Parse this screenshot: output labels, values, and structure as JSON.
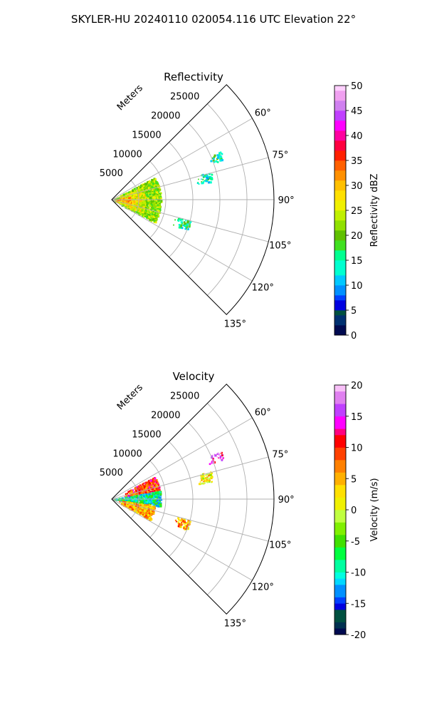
{
  "figure": {
    "title": "SKYLER-HU  20240110  020054.116 UTC Elevation 22°"
  },
  "chart_data": [
    {
      "type": "heatmap",
      "projection": "polar-sector",
      "title": "Reflectivity",
      "radial_label": "Meters",
      "radial_ticks": [
        5000,
        10000,
        15000,
        20000,
        25000
      ],
      "radial_tick_labels": [
        "5000",
        "10000",
        "15000",
        "20000",
        "25000"
      ],
      "azimuth_ticks": [
        60,
        75,
        90,
        105,
        120,
        135
      ],
      "azimuth_tick_labels": [
        "60°",
        "75°",
        "90°",
        "105°",
        "120°",
        "135°"
      ],
      "azimuth_range": [
        45,
        135
      ],
      "radial_range": [
        0,
        30000
      ],
      "grid": true,
      "colorbar": {
        "label": "Reflectivity dBZ",
        "range": [
          0,
          50
        ],
        "ticks": [
          0,
          5,
          10,
          15,
          20,
          25,
          30,
          35,
          40,
          45,
          50
        ],
        "tick_labels": [
          "0",
          "5",
          "10",
          "15",
          "20",
          "25",
          "30",
          "35",
          "40",
          "45",
          "50"
        ]
      },
      "echo_regions": [
        {
          "az": [
            62,
            118
          ],
          "range": [
            0,
            9000
          ],
          "value": 22
        },
        {
          "az": [
            68,
            112
          ],
          "range": [
            1500,
            6000
          ],
          "value": 26
        },
        {
          "az": [
            80,
            100
          ],
          "range": [
            500,
            3500
          ],
          "value": 30
        },
        {
          "az": [
            66,
            70
          ],
          "range": [
            19000,
            22000
          ],
          "value": 15
        },
        {
          "az": [
            74,
            80
          ],
          "range": [
            16000,
            19000
          ],
          "value": 14
        },
        {
          "az": [
            105,
            112
          ],
          "range": [
            12000,
            15000
          ],
          "value": 15
        }
      ]
    },
    {
      "type": "heatmap",
      "projection": "polar-sector",
      "title": "Velocity",
      "radial_label": "Meters",
      "radial_ticks": [
        5000,
        10000,
        15000,
        20000,
        25000
      ],
      "radial_tick_labels": [
        "5000",
        "10000",
        "15000",
        "20000",
        "25000"
      ],
      "azimuth_ticks": [
        60,
        75,
        90,
        105,
        120,
        135
      ],
      "azimuth_tick_labels": [
        "60°",
        "75°",
        "90°",
        "105°",
        "120°",
        "135°"
      ],
      "azimuth_range": [
        45,
        135
      ],
      "radial_range": [
        0,
        30000
      ],
      "grid": true,
      "colorbar": {
        "label": "Velocity (m/s)",
        "range": [
          -20,
          20
        ],
        "ticks": [
          -20,
          -15,
          -10,
          -5,
          0,
          5,
          10,
          15,
          20
        ],
        "tick_labels": [
          "-20",
          "-15",
          "-10",
          "-5",
          "0",
          "5",
          "10",
          "15",
          "20"
        ]
      },
      "echo_regions": [
        {
          "az": [
            62,
            80
          ],
          "range": [
            2000,
            9000
          ],
          "value": 9
        },
        {
          "az": [
            80,
            98
          ],
          "range": [
            0,
            9000
          ],
          "value": -9
        },
        {
          "az": [
            98,
            118
          ],
          "range": [
            1000,
            8000
          ],
          "value": 5
        },
        {
          "az": [
            66,
            70
          ],
          "range": [
            19000,
            22000
          ],
          "value": 15
        },
        {
          "az": [
            74,
            80
          ],
          "range": [
            16000,
            19000
          ],
          "value": 2
        },
        {
          "az": [
            105,
            112
          ],
          "range": [
            12000,
            15000
          ],
          "value": 6
        }
      ]
    }
  ]
}
